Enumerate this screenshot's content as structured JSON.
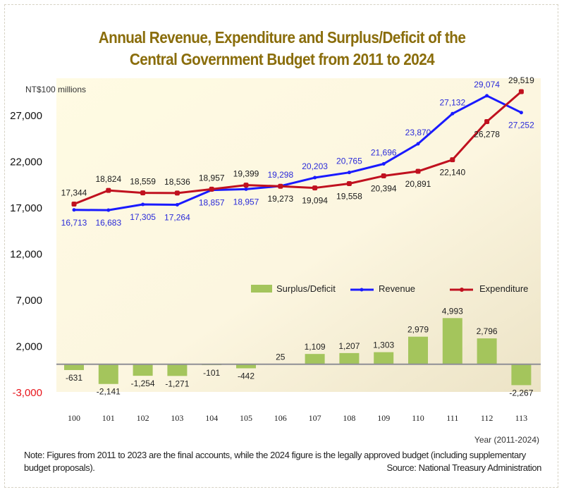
{
  "chart_data": {
    "type": "bar+line",
    "title_lines": [
      "Annual Revenue, Expenditure and Surplus/Deficit of the",
      "Central Government Budget from 2011 to 2024"
    ],
    "ylabel": "NT$100 millions",
    "xlabel": "Year (2011-2024)",
    "ylim": [
      -3000,
      29600
    ],
    "y_ticks": [
      {
        "value": 27000,
        "label": "27,000",
        "color": "#111111"
      },
      {
        "value": 22000,
        "label": "22,000",
        "color": "#111111"
      },
      {
        "value": 17000,
        "label": "17,000",
        "color": "#111111"
      },
      {
        "value": 12000,
        "label": "12,000",
        "color": "#111111"
      },
      {
        "value": 7000,
        "label": "7,000",
        "color": "#111111"
      },
      {
        "value": 2000,
        "label": "2,000",
        "color": "#111111"
      },
      {
        "value": -3000,
        "label": "-3,000",
        "color": "#e8141b"
      }
    ],
    "grid": false,
    "legend_position": "middle-right",
    "categories": [
      "100",
      "101",
      "102",
      "103",
      "104",
      "105",
      "106",
      "107",
      "108",
      "109",
      "110",
      "111",
      "112",
      "113"
    ],
    "series": [
      {
        "name": "Surplus/Deficit",
        "type": "bar",
        "color": "#a4c55c",
        "values": [
          -631,
          -2141,
          -1254,
          -1271,
          -101,
          -442,
          25,
          1109,
          1207,
          1303,
          2979,
          4993,
          2796,
          -2267
        ],
        "labels": [
          "-631",
          "-2,141",
          "-1,254",
          "-1,271",
          "-101",
          "-442",
          "25",
          "1,109",
          "1,207",
          "1,303",
          "2,979",
          "4,993",
          "2,796",
          "-2,267"
        ],
        "label_color": "#222222"
      },
      {
        "name": "Revenue",
        "type": "line",
        "color": "#1a1aff",
        "values": [
          16713,
          16683,
          17305,
          17264,
          18857,
          18957,
          19298,
          20203,
          20765,
          21696,
          23870,
          27132,
          29074,
          27252
        ],
        "labels": [
          "16,713",
          "16,683",
          "17,305",
          "17,264",
          "18,857",
          "18,957",
          "19,298",
          "20,203",
          "20,765",
          "21,696",
          "23,870",
          "27,132",
          "29,074",
          "27,252"
        ],
        "label_color": "#2b2bd9"
      },
      {
        "name": "Expenditure",
        "type": "line",
        "color": "#c0111f",
        "values": [
          17344,
          18824,
          18559,
          18536,
          18957,
          19399,
          19273,
          19094,
          19558,
          20394,
          20891,
          22140,
          26278,
          29519
        ],
        "labels": [
          "17,344",
          "18,824",
          "18,559",
          "18,536",
          "18,957",
          "19,399",
          "19,273",
          "19,094",
          "19,558",
          "20,394",
          "20,891",
          "22,140",
          "26,278",
          "29,519"
        ],
        "label_color": "#1a1a1a"
      }
    ]
  },
  "footer": {
    "note": "Note: Figures from 2011 to 2023 are the final accounts, while the 2024 figure is the legally approved budget (including supplementary budget proposals).",
    "source": "Source:  National Treasury Administration"
  }
}
